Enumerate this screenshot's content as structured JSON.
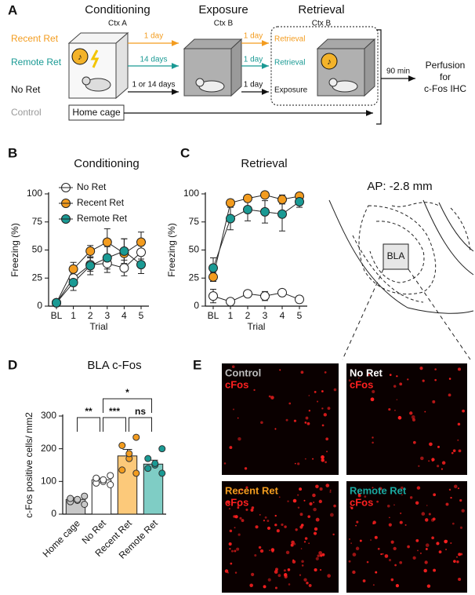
{
  "panel_letters": [
    "A",
    "B",
    "C",
    "D",
    "E"
  ],
  "panel_a": {
    "stages": [
      {
        "title": "Conditioning",
        "context": "Ctx A"
      },
      {
        "title": "Exposure",
        "context": "Ctx B"
      },
      {
        "title": "Retrieval",
        "context": "Ctx B"
      }
    ],
    "groups": [
      "Recent Ret",
      "Remote Ret",
      "No Ret",
      "Control"
    ],
    "intervals_1": [
      "1 day",
      "14 days",
      "1 or 14 days"
    ],
    "intervals_2": [
      "1 day",
      "1 day",
      "1 day"
    ],
    "tests": [
      "Retrieval",
      "Retrieval",
      "Exposure"
    ],
    "home_cage": "Home cage",
    "delay": "90 min",
    "endpoint": [
      "Perfusion",
      "for",
      "c-Fos IHC"
    ]
  },
  "chart_data": [
    {
      "type": "line",
      "title": "Conditioning",
      "x_label": "Trial",
      "y_label": "Freezing (%)",
      "categories": [
        "BL",
        "1",
        "2",
        "3",
        "4",
        "5"
      ],
      "ylim": [
        0,
        100
      ],
      "yticks": [
        0,
        25,
        50,
        75,
        100
      ],
      "legend": "upper left",
      "series": [
        {
          "name": "No Ret",
          "color": "#ffffff",
          "values": [
            3,
            25,
            37,
            38,
            34,
            48
          ],
          "errors": [
            1,
            5,
            6,
            8,
            7,
            6
          ]
        },
        {
          "name": "Recent Ret",
          "color": "#f39c1f",
          "values": [
            3,
            33,
            49,
            57,
            47,
            57
          ],
          "errors": [
            1,
            6,
            5,
            12,
            13,
            9
          ]
        },
        {
          "name": "Remote Ret",
          "color": "#1a9a94",
          "values": [
            3,
            21,
            36,
            43,
            49,
            37
          ],
          "errors": [
            1,
            7,
            8,
            10,
            11,
            8
          ]
        }
      ]
    },
    {
      "type": "line",
      "title": "Retrieval",
      "x_label": "Trial",
      "y_label": "Freezing (%)",
      "categories": [
        "BL",
        "1",
        "2",
        "3",
        "4",
        "5"
      ],
      "ylim": [
        0,
        100
      ],
      "yticks": [
        0,
        25,
        50,
        75,
        100
      ],
      "series": [
        {
          "color": "#ffffff",
          "values": [
            9,
            4,
            11,
            9,
            12,
            6
          ],
          "errors": [
            6,
            2,
            3,
            4,
            3,
            3
          ]
        },
        {
          "color": "#f39c1f",
          "values": [
            26,
            92,
            96,
            99,
            95,
            98
          ],
          "errors": [
            4,
            3,
            3,
            2,
            4,
            3
          ]
        },
        {
          "color": "#1a9a94",
          "values": [
            34,
            78,
            86,
            84,
            82,
            93
          ],
          "errors": [
            9,
            10,
            10,
            10,
            15,
            5
          ]
        }
      ]
    },
    {
      "type": "bar",
      "title": "BLA c-Fos",
      "y_label": "c-Fos positive cells/ mm2",
      "categories": [
        "Home cage",
        "No Ret",
        "Recent Ret",
        "Remote Ret"
      ],
      "values": [
        45,
        105,
        178,
        153
      ],
      "errors": [
        5,
        5,
        20,
        12
      ],
      "colors": [
        "#c8c8c8",
        "#ffffff",
        "#fcc97a",
        "#7fcdc5"
      ],
      "point_colors": [
        "#c8c8c8",
        "#ffffff",
        "#f39c1f",
        "#1a9a94"
      ],
      "points": [
        [
          30,
          38,
          42,
          45,
          48,
          55
        ],
        [
          90,
          95,
          100,
          105,
          110,
          118
        ],
        [
          125,
          135,
          170,
          185,
          210,
          235
        ],
        [
          125,
          140,
          150,
          155,
          170,
          200
        ]
      ],
      "ylim": [
        0,
        300
      ],
      "yticks": [
        0,
        100,
        200,
        300
      ],
      "annotations": [
        "**",
        "***",
        "ns",
        "*"
      ]
    }
  ],
  "brain": {
    "section": "AP: -2.8 mm",
    "region": "BLA"
  },
  "panel_e": {
    "images": [
      {
        "group": "Control",
        "stain": "cFos"
      },
      {
        "group": "No Ret",
        "stain": "cFos"
      },
      {
        "group": "Recent Ret",
        "stain": "cFos"
      },
      {
        "group": "Remote Ret",
        "stain": "cFos"
      }
    ]
  }
}
